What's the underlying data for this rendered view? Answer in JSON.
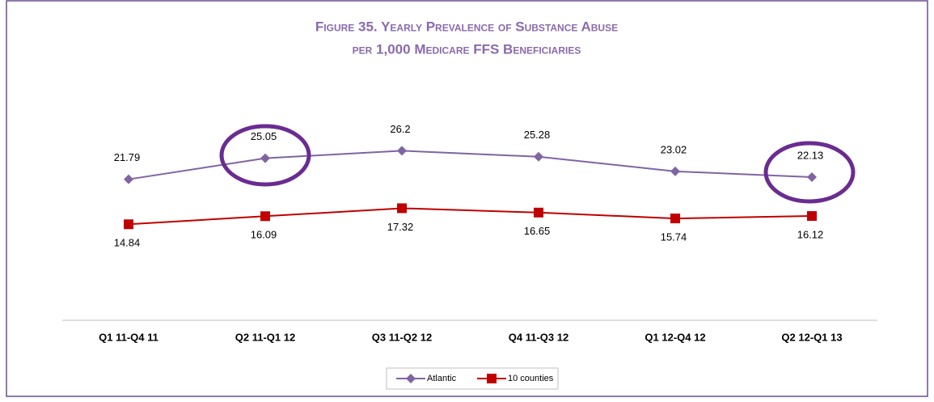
{
  "chart_data": {
    "type": "line",
    "title": [
      "Figure 35. Yearly Prevalence of Substance Abuse",
      "per 1,000 Medicare FFS Beneficiaries"
    ],
    "categories": [
      "Q1 11-Q4 11",
      "Q2 11-Q1 12",
      "Q3 11-Q2 12",
      "Q4 11-Q3 12",
      "Q1 12-Q4 12",
      "Q2 12-Q1 13"
    ],
    "series": [
      {
        "name": "Atlantic",
        "color": "#8064a2",
        "marker": "diamond",
        "values": [
          21.79,
          25.05,
          26.2,
          25.28,
          23.02,
          22.13
        ]
      },
      {
        "name": "10 counties",
        "color": "#c00000",
        "marker": "square",
        "values": [
          14.84,
          16.09,
          17.32,
          16.65,
          15.74,
          16.12
        ]
      }
    ]
  }
}
